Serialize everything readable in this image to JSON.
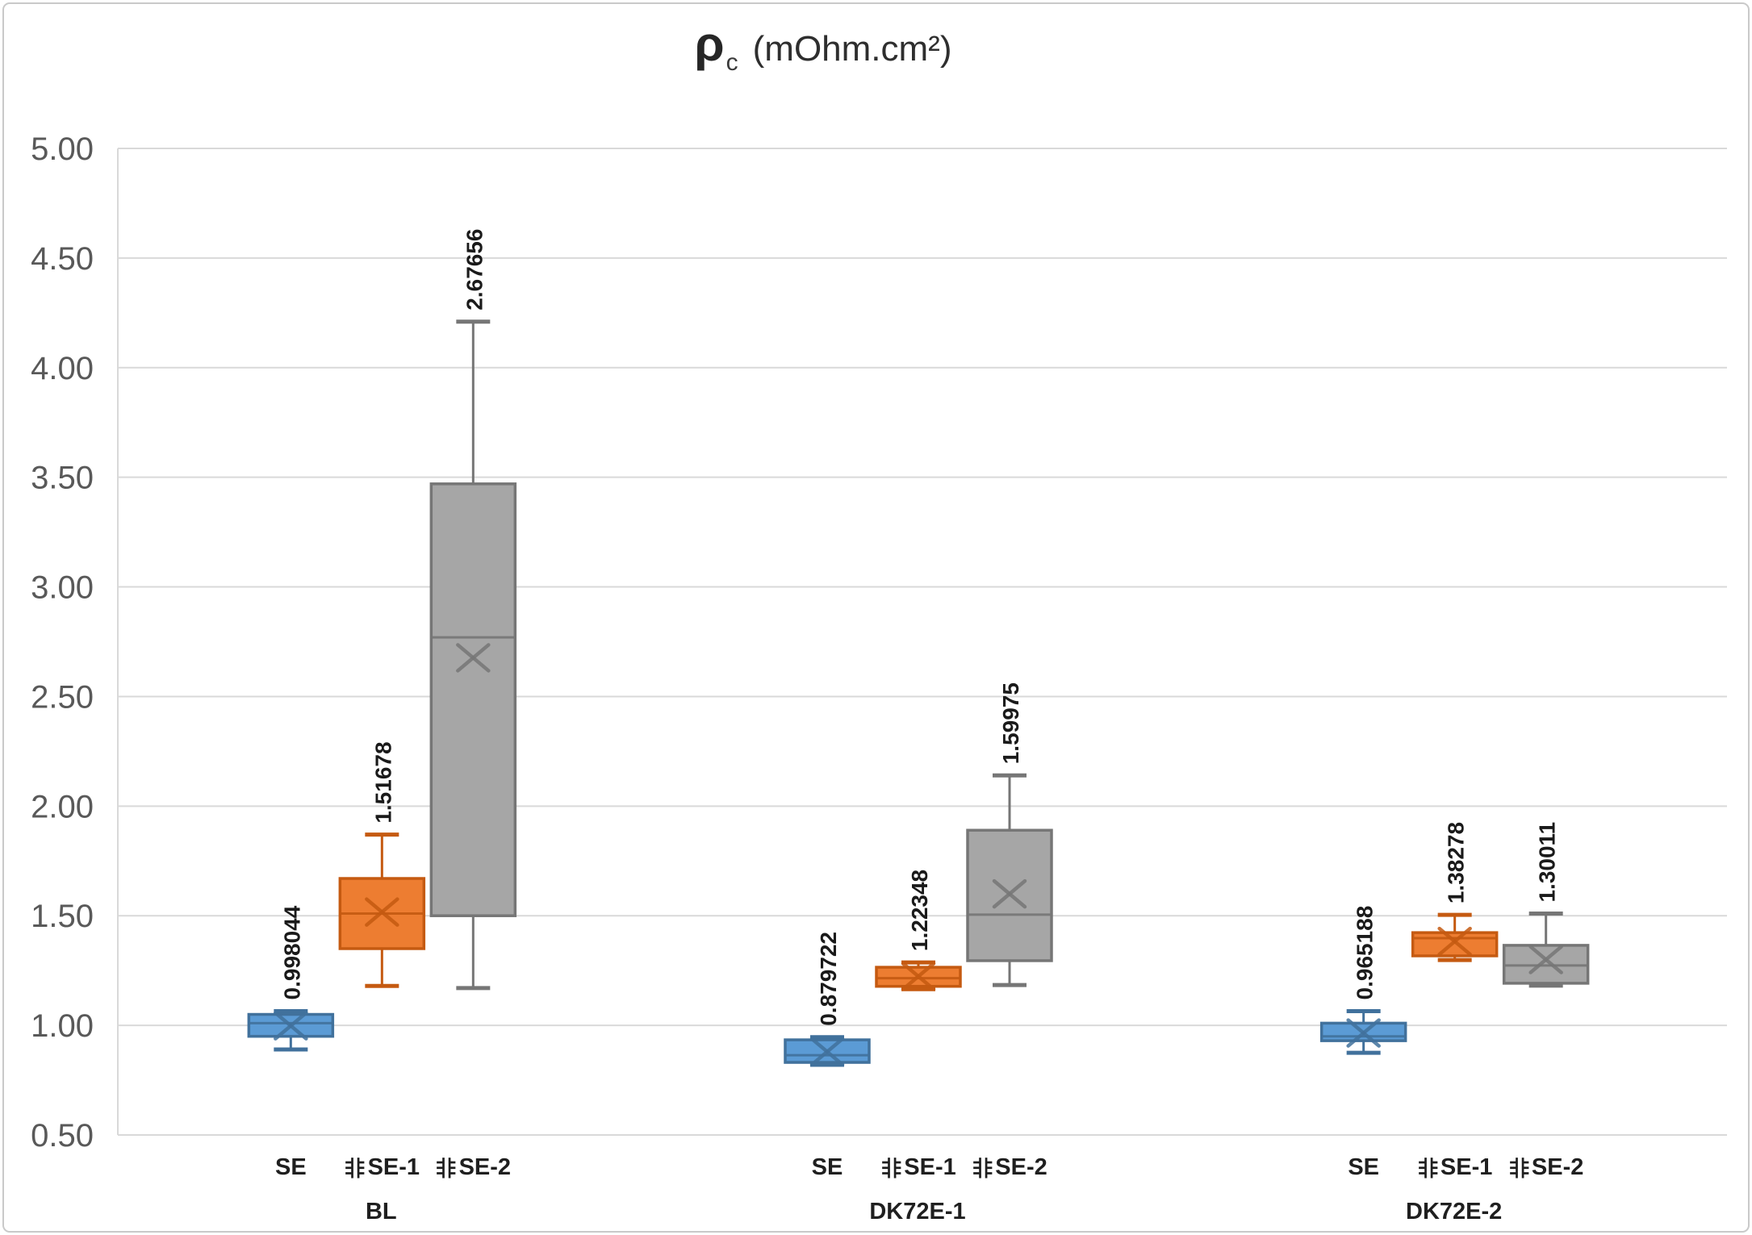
{
  "title": {
    "symbol": "ρ",
    "subscript": "c",
    "units": "(mOhm.cm²)"
  },
  "y_axis": {
    "ticks": [
      "5.00",
      "4.50",
      "4.00",
      "3.50",
      "3.00",
      "2.50",
      "2.00",
      "1.50",
      "1.00",
      "0.50"
    ]
  },
  "colors": {
    "grid": "#D9D9D9",
    "tick_text": "#595959",
    "label_text": "#1A1A1A"
  },
  "chart_data": {
    "type": "boxplot",
    "title": "ρc (mOhm.cm²)",
    "ylim": [
      0.5,
      5.0
    ],
    "ystep": 0.5,
    "grid": true,
    "legend": "none",
    "series": [
      {
        "name": "SE",
        "fill": "#5B9BD5",
        "stroke": "#41719C"
      },
      {
        "name": "非SE-1",
        "fill": "#ED7D31",
        "stroke": "#C55A11"
      },
      {
        "name": "非SE-2",
        "fill": "#A6A6A6",
        "stroke": "#767676"
      }
    ],
    "groups": [
      {
        "label": "BL",
        "boxes": [
          {
            "series": "SE",
            "low": 0.89,
            "q1": 0.95,
            "median": 1.01,
            "q3": 1.05,
            "high": 1.065,
            "mean": 0.998044,
            "mean_label": "0.998044"
          },
          {
            "series": "非SE-1",
            "low": 1.18,
            "q1": 1.35,
            "median": 1.51,
            "q3": 1.67,
            "high": 1.87,
            "mean": 1.51678,
            "mean_label": "1.51678"
          },
          {
            "series": "非SE-2",
            "low": 1.17,
            "q1": 1.5,
            "median": 2.77,
            "q3": 3.47,
            "high": 4.21,
            "mean": 2.67656,
            "mean_label": "2.67656"
          }
        ]
      },
      {
        "label": "DK72E-1",
        "boxes": [
          {
            "series": "SE",
            "low": 0.82,
            "q1": 0.831,
            "median": 0.864,
            "q3": 0.934,
            "high": 0.946,
            "mean": 0.879722,
            "mean_label": "0.879722"
          },
          {
            "series": "非SE-1",
            "low": 1.165,
            "q1": 1.178,
            "median": 1.215,
            "q3": 1.265,
            "high": 1.287,
            "mean": 1.22348,
            "mean_label": "1.22348"
          },
          {
            "series": "非SE-2",
            "low": 1.184,
            "q1": 1.295,
            "median": 1.505,
            "q3": 1.89,
            "high": 2.14,
            "mean": 1.59975,
            "mean_label": "1.59975"
          }
        ]
      },
      {
        "label": "DK72E-2",
        "boxes": [
          {
            "series": "SE",
            "low": 0.875,
            "q1": 0.93,
            "median": 0.95,
            "q3": 1.01,
            "high": 1.065,
            "mean": 0.965188,
            "mean_label": "0.965188"
          },
          {
            "series": "非SE-1",
            "low": 1.298,
            "q1": 1.317,
            "median": 1.398,
            "q3": 1.423,
            "high": 1.504,
            "mean": 1.38278,
            "mean_label": "1.38278"
          },
          {
            "series": "非SE-2",
            "low": 1.181,
            "q1": 1.192,
            "median": 1.273,
            "q3": 1.365,
            "high": 1.51,
            "mean": 1.30011,
            "mean_label": "1.30011"
          }
        ]
      }
    ]
  }
}
